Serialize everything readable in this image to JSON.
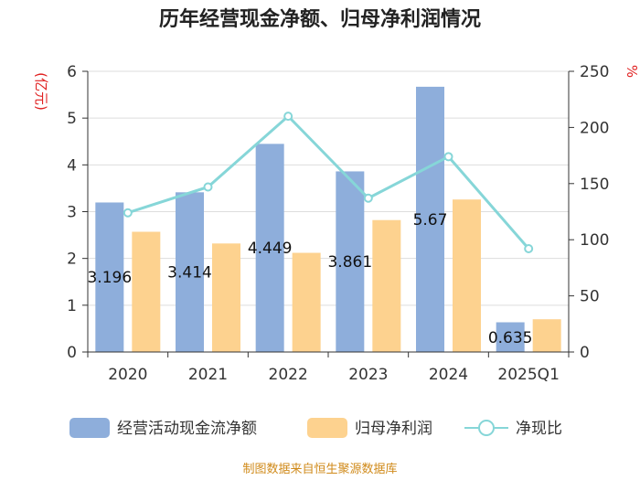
{
  "chart_data": {
    "type": "bar",
    "title": "历年经营现金净额、归母净利润情况",
    "categories": [
      "2020",
      "2021",
      "2022",
      "2023",
      "2024",
      "2025Q1"
    ],
    "series": [
      {
        "name": "经营活动现金流净额",
        "kind": "bar",
        "axis": "left",
        "color": "#8eaedb",
        "values": [
          3.196,
          3.414,
          4.449,
          3.861,
          5.67,
          0.635
        ]
      },
      {
        "name": "归母净利润",
        "kind": "bar",
        "axis": "left",
        "color": "#fdd28f",
        "values": [
          2.57,
          2.32,
          2.12,
          2.82,
          3.26,
          0.7
        ]
      },
      {
        "name": "净现比",
        "kind": "line",
        "axis": "right",
        "color": "#86d6d8",
        "values": [
          124,
          147,
          210,
          137,
          174,
          92
        ]
      }
    ],
    "data_labels": [
      "3.196",
      "3.414",
      "4.449",
      "3.861",
      "5.67",
      "0.635"
    ],
    "left_axis": {
      "label": "(亿元)",
      "min": 0,
      "max": 6,
      "ticks": [
        0,
        1,
        2,
        3,
        4,
        5,
        6
      ]
    },
    "right_axis": {
      "label": "%",
      "min": 0,
      "max": 250,
      "ticks": [
        0,
        50,
        100,
        150,
        200,
        250
      ]
    },
    "legend": {
      "position": "bottom"
    },
    "grid": true
  },
  "source": "制图数据来自恒生聚源数据库"
}
